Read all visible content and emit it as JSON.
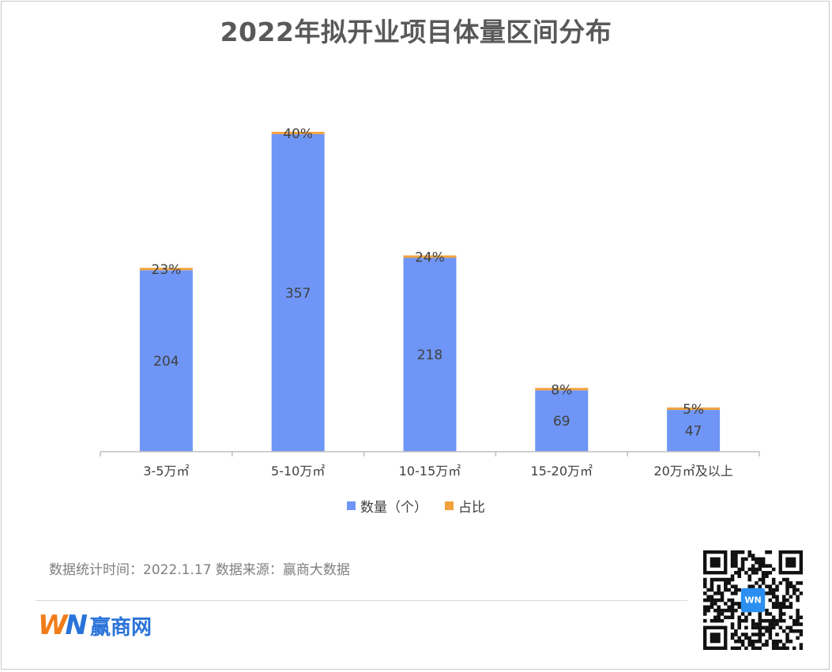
{
  "title": "2022年拟开业项目体量区间分布",
  "colors": {
    "bar": "#6f96f6",
    "cap": "#f2a23c",
    "axis": "#bfbfbf",
    "label": "#404040"
  },
  "chart_data": {
    "type": "bar",
    "categories": [
      "3-5万㎡",
      "5-10万㎡",
      "10-15万㎡",
      "15-20万㎡",
      "20万㎡及以上"
    ],
    "series": [
      {
        "name": "数量（个）",
        "values": [
          204,
          357,
          218,
          69,
          47
        ]
      },
      {
        "name": "占比",
        "values": [
          "23%",
          "40%",
          "24%",
          "8%",
          "5%"
        ]
      }
    ],
    "ylim": [
      0,
      380
    ],
    "grid": false,
    "legend": "bottom"
  },
  "source": "数据统计时间：2022.1.17  数据来源：赢商大数据",
  "logo": {
    "mark": "WN",
    "text": "赢商网"
  },
  "qr": {
    "center_label": "WN"
  }
}
